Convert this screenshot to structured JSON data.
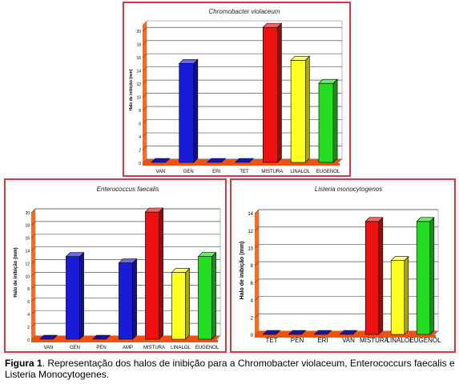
{
  "chart_data": [
    {
      "type": "bar",
      "title": "Chromobacter violaceum",
      "ylabel": "Halo de inibição (mm)",
      "ylim": [
        0,
        21
      ],
      "yticks": [
        0,
        2,
        4,
        6,
        8,
        10,
        12,
        14,
        16,
        18,
        20
      ],
      "categories": [
        "VAN",
        "GEN",
        "ERI",
        "TET",
        "MISTURA",
        "LINALOL",
        "EUGENOL"
      ],
      "values": [
        0,
        15,
        0,
        0,
        20.5,
        15.5,
        12
      ],
      "colors": [
        "#1a1ad9",
        "#1a1ad9",
        "#1a1ad9",
        "#1a1ad9",
        "#ee1111",
        "#ffff22",
        "#22dd22"
      ]
    },
    {
      "type": "bar",
      "title": "Enterococcus faecalis",
      "ylabel": "Halo de inibição (mm)",
      "ylim": [
        0,
        20
      ],
      "yticks": [
        0,
        2,
        4,
        6,
        8,
        10,
        12,
        14,
        16,
        18,
        20
      ],
      "categories": [
        "VAN",
        "GEN",
        "PEN",
        "AMP",
        "MISTURA",
        "LINALOL",
        "EUGENOL"
      ],
      "values": [
        0,
        13,
        0,
        12,
        20,
        10.5,
        13
      ],
      "colors": [
        "#1a1ad9",
        "#1a1ad9",
        "#1a1ad9",
        "#1a1ad9",
        "#ee1111",
        "#ffff22",
        "#22dd22"
      ]
    },
    {
      "type": "bar",
      "title": "Listeria monocytogenos",
      "ylabel": "Halo de inibição (mm)",
      "ylim": [
        0,
        14
      ],
      "yticks": [
        0,
        2,
        4,
        6,
        8,
        10,
        12,
        14
      ],
      "categories": [
        "TET",
        "PEN",
        "ERI",
        "VAN",
        "MISTURA",
        "LINALOL",
        "EUGENOL"
      ],
      "values": [
        0,
        0,
        0,
        0,
        13,
        8.5,
        13
      ],
      "colors": [
        "#1a1ad9",
        "#1a1ad9",
        "#1a1ad9",
        "#1a1ad9",
        "#ee1111",
        "#ffff22",
        "#22dd22"
      ]
    }
  ],
  "caption": {
    "label": "Figura 1",
    "text": ". Representação dos halos de inibição para a Chromobacter violaceum, Enterococcurs faecalis e Listeria Monocytogenes."
  },
  "colors": {
    "wall": "#ff6a1a",
    "floor": "#f05010",
    "border": "#d9363e"
  }
}
